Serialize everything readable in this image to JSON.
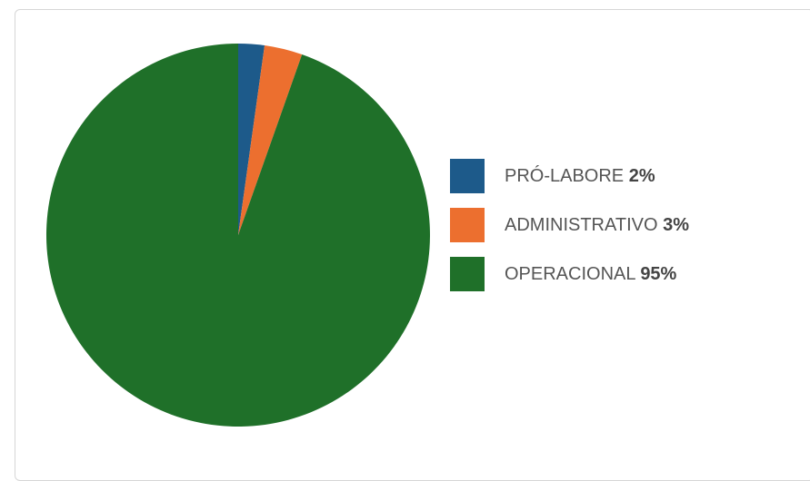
{
  "chart_data": {
    "type": "pie",
    "slices": [
      {
        "label": "PRÓ-LABORE",
        "percent_label": "2%",
        "value": 2.2,
        "color": "#1d5a8a"
      },
      {
        "label": "ADMINISTRATIVO",
        "percent_label": "3%",
        "value": 3.2,
        "color": "#ec6f2f"
      },
      {
        "label": "OPERACIONAL",
        "percent_label": "95%",
        "value": 94.6,
        "color": "#1f7029"
      }
    ],
    "legend_position": "right"
  }
}
